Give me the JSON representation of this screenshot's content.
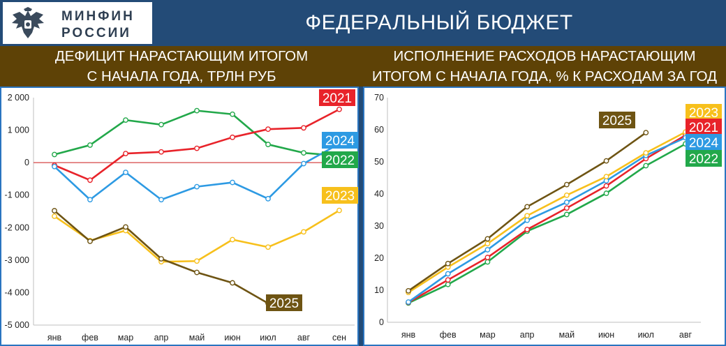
{
  "header": {
    "logo_line1": "МИНФИН",
    "logo_line2": "РОССИИ",
    "title": "ФЕДЕРАЛЬНЫЙ БЮДЖЕТ"
  },
  "subheader": {
    "left_line1": "ДЕФИЦИТ НАРАСТАЮЩИМ ИТОГОМ",
    "left_line2": "С НАЧАЛА ГОДА, ТРЛН РУБ",
    "right_line1": "ИСПОЛНЕНИЕ РАСХОДОВ НАРАСТАЮЩИМ",
    "right_line2": "ИТОГОМ С НАЧАЛА ГОДА, % К РАСХОДАМ ЗА ГОД"
  },
  "colors": {
    "header_bg": "#234b77",
    "subheader_bg": "#5e4206",
    "y2021": "#e8232a",
    "y2022": "#22a84a",
    "y2023": "#f7c01c",
    "y2024": "#2d9ae3",
    "y2025": "#6e5413",
    "zero_line": "#d64545"
  },
  "chart_data": [
    {
      "type": "line",
      "categories": [
        "янв",
        "фев",
        "мар",
        "апр",
        "май",
        "июн",
        "июл",
        "авг",
        "сен"
      ],
      "ylim": [
        -5000,
        2000
      ],
      "yticks": [
        2000,
        1000,
        0,
        -1000,
        -2000,
        -3000,
        -4000,
        -5000
      ],
      "ytick_labels": [
        "2 000",
        "1 000",
        "0",
        "-1 000",
        "-2 000",
        "-3 000",
        "-4 000",
        "-5 000"
      ],
      "grid": false,
      "series": [
        {
          "name": "2022",
          "color": "#22a84a",
          "values": [
            250,
            540,
            1310,
            1170,
            1600,
            1490,
            560,
            300,
            210
          ]
        },
        {
          "name": "2021",
          "color": "#e8232a",
          "values": [
            -80,
            -540,
            280,
            330,
            440,
            780,
            1030,
            1070,
            1640
          ]
        },
        {
          "name": "2024",
          "color": "#2d9ae3",
          "values": [
            -120,
            -1140,
            -300,
            -1140,
            -740,
            -610,
            -1110,
            -30,
            580
          ]
        },
        {
          "name": "2023",
          "color": "#f7c01c",
          "values": [
            -1650,
            -2400,
            -2090,
            -3050,
            -3030,
            -2370,
            -2600,
            -2130,
            -1470
          ]
        },
        {
          "name": "2025",
          "color": "#6e5413",
          "values": [
            -1480,
            -2420,
            -1980,
            -2960,
            -3380,
            -3700,
            -4330,
            null,
            null
          ]
        }
      ],
      "tags": [
        {
          "text": "2021",
          "color": "#e8232a"
        },
        {
          "text": "2024",
          "color": "#2d9ae3"
        },
        {
          "text": "2022",
          "color": "#22a84a"
        },
        {
          "text": "2023",
          "color": "#f7c01c"
        },
        {
          "text": "2025",
          "color": "#6e5413"
        }
      ]
    },
    {
      "type": "line",
      "categories": [
        "янв",
        "фев",
        "мар",
        "апр",
        "май",
        "июн",
        "июл",
        "авг"
      ],
      "ylim": [
        0,
        70
      ],
      "yticks": [
        0,
        10,
        20,
        30,
        40,
        50,
        60,
        70
      ],
      "ytick_labels": [
        "0",
        "10",
        "20",
        "30",
        "40",
        "50",
        "60",
        "70"
      ],
      "grid": false,
      "series": [
        {
          "name": "2022",
          "color": "#22a84a",
          "values": [
            6,
            11.8,
            18.8,
            28.4,
            33.6,
            40.2,
            48.8,
            55.6
          ]
        },
        {
          "name": "2021",
          "color": "#e8232a",
          "values": [
            6.2,
            13.2,
            20.2,
            28.9,
            35.6,
            42.5,
            51,
            58.3
          ]
        },
        {
          "name": "2024",
          "color": "#2d9ae3",
          "values": [
            6.3,
            15.1,
            22.6,
            31.8,
            37.4,
            44.1,
            52,
            57.5
          ]
        },
        {
          "name": "2023",
          "color": "#f7c01c",
          "values": [
            9.3,
            17.2,
            24.5,
            33.2,
            39.6,
            45.4,
            52.8,
            59.3
          ]
        },
        {
          "name": "2025",
          "color": "#6e5413",
          "values": [
            9.8,
            18.3,
            26,
            36,
            42.9,
            50.3,
            59.1,
            null
          ]
        }
      ],
      "tags": [
        {
          "text": "2025",
          "color": "#6e5413"
        },
        {
          "text": "2023",
          "color": "#f7c01c"
        },
        {
          "text": "2021",
          "color": "#e8232a"
        },
        {
          "text": "2024",
          "color": "#2d9ae3"
        },
        {
          "text": "2022",
          "color": "#22a84a"
        }
      ]
    }
  ]
}
